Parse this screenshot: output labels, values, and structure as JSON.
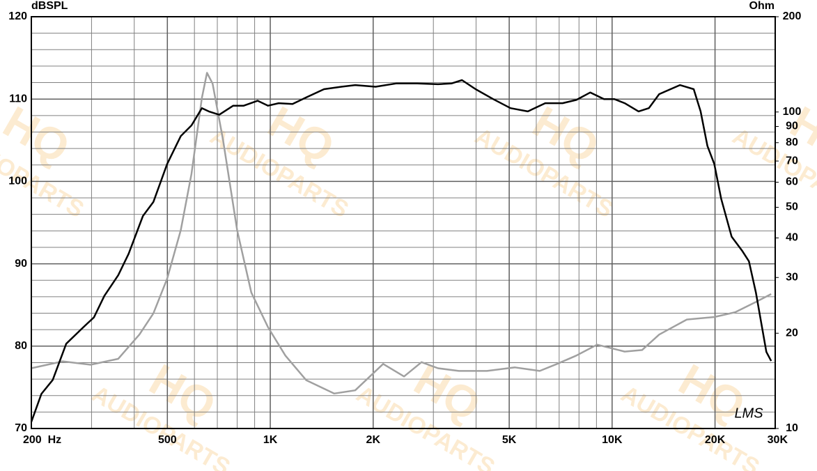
{
  "chart_data": {
    "type": "line",
    "ylabel": "dBSPL",
    "y2label": "Ohm",
    "annotation": "LMS",
    "watermark": [
      "HQ",
      "AUDIOPARTS"
    ],
    "xscale": "log",
    "y2scale": "log",
    "grid": true,
    "xlim": [
      200,
      30000
    ],
    "xticks": [
      {
        "value": 200,
        "label": "200  Hz"
      },
      500,
      {
        "value": 1000,
        "label": "1K"
      },
      {
        "value": 2000,
        "label": "2K"
      },
      {
        "value": 5000,
        "label": "5K"
      },
      {
        "value": 10000,
        "label": "10K"
      },
      {
        "value": 20000,
        "label": "20K"
      },
      {
        "value": 30000,
        "label": "30K"
      }
    ],
    "xgrid": [
      300,
      400,
      500,
      600,
      700,
      800,
      900,
      1000,
      2000,
      3000,
      4000,
      5000,
      6000,
      7000,
      8000,
      9000,
      10000,
      20000
    ],
    "ylim": [
      70,
      120
    ],
    "yticks": [
      70,
      80,
      90,
      100,
      110,
      120
    ],
    "ygrid": [
      72,
      74,
      76,
      78,
      80,
      82,
      84,
      86,
      88,
      90,
      92,
      94,
      96,
      98,
      100,
      102,
      104,
      106,
      108,
      110,
      112,
      114,
      116,
      118
    ],
    "y2lim": [
      10,
      200
    ],
    "y2ticks": [
      10,
      20,
      30,
      40,
      50,
      60,
      70,
      80,
      90,
      100,
      200
    ],
    "series": [
      {
        "color": "#000000",
        "x": [
          200,
          214,
          231,
          253,
          284,
          305,
          327,
          359,
          385,
          424,
          455,
          499,
          547,
          588,
          631,
          661,
          709,
          779,
          836,
          919,
          985,
          1058,
          1162,
          1275,
          1436,
          1614,
          1772,
          2032,
          2341,
          2691,
          3094,
          3393,
          3638,
          3989,
          4486,
          5042,
          5668,
          6372,
          7163,
          7860,
          8634,
          9470,
          10151,
          10886,
          11947,
          12806,
          13728,
          15787,
          17330,
          18148,
          19007,
          19906,
          20847,
          22369,
          23996,
          25139,
          26340,
          28261,
          29196
        ],
        "values": [
          70.8,
          74.2,
          75.9,
          80.3,
          82.3,
          83.5,
          86.1,
          88.6,
          91.2,
          95.8,
          97.5,
          102.1,
          105.5,
          106.8,
          108.9,
          108.5,
          108.1,
          109.2,
          109.2,
          109.8,
          109.2,
          109.5,
          109.4,
          110.2,
          111.2,
          111.5,
          111.7,
          111.5,
          111.9,
          111.9,
          111.8,
          111.9,
          112.3,
          111.2,
          110.0,
          108.9,
          108.5,
          109.5,
          109.5,
          109.9,
          110.8,
          110.0,
          110.0,
          109.5,
          108.5,
          108.9,
          110.6,
          111.7,
          111.2,
          108.5,
          104.3,
          102.1,
          97.9,
          93.3,
          91.6,
          90.3,
          86.5,
          79.3,
          78.2
        ]
      },
      {
        "color": "#a0a0a0",
        "axis": "y2",
        "x": [
          200,
          247,
          298,
          359,
          414,
          455,
          499,
          547,
          588,
          631,
          653,
          678,
          727,
          800,
          880,
          985,
          1107,
          1275,
          1537,
          1772,
          2139,
          2462,
          2770,
          3094,
          3563,
          4304,
          5198,
          6140,
          6903,
          7860,
          9041,
          10886,
          12236,
          13728,
          16540,
          19906,
          22907,
          26340,
          29196
        ],
        "values": [
          15.5,
          16.3,
          15.9,
          16.6,
          19.8,
          23.1,
          29.7,
          42.3,
          63.7,
          111,
          133,
          123,
          81.9,
          42.3,
          26.9,
          20.9,
          17.0,
          14.2,
          12.9,
          13.2,
          16.0,
          14.6,
          16.2,
          15.5,
          15.2,
          15.2,
          15.6,
          15.2,
          16.0,
          17.0,
          18.4,
          17.5,
          17.7,
          19.8,
          22.1,
          22.5,
          23.3,
          25.1,
          26.6
        ]
      }
    ]
  }
}
